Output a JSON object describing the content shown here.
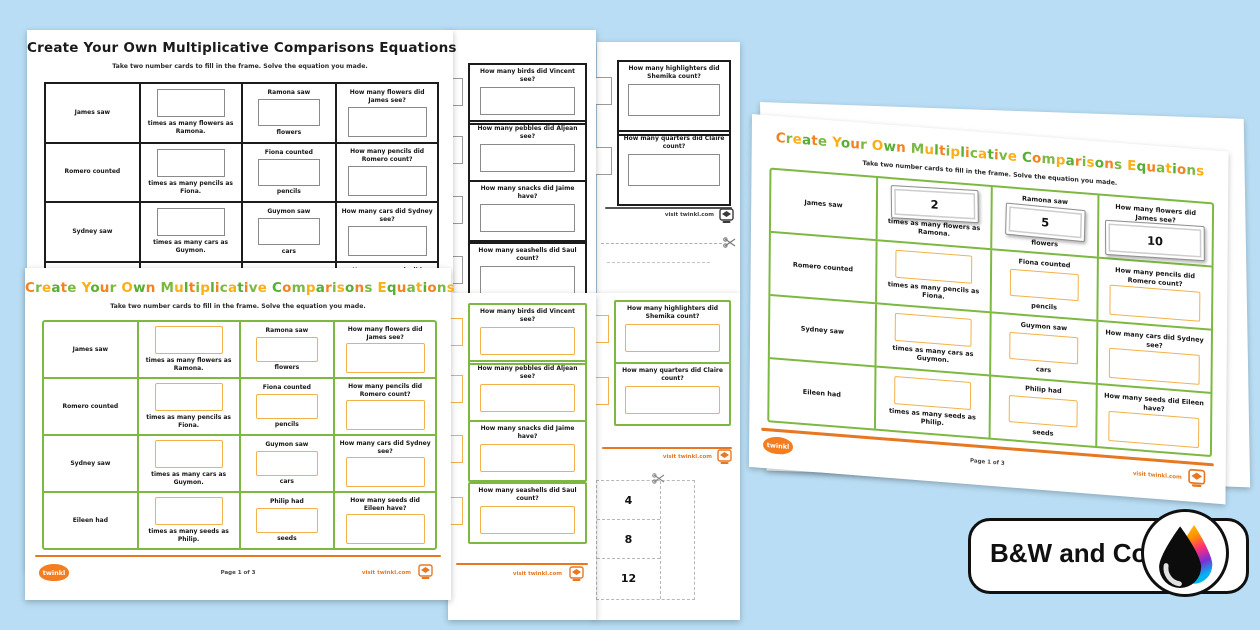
{
  "colors": {
    "background": "#b9ddf4",
    "table_green": "#7db843",
    "box_orange": "#f2b14b",
    "footer_orange": "#e87722",
    "brand_orange": "#f47d20",
    "title_palette": [
      "#f58220",
      "#7db843",
      "#fbaf17",
      "#57ae35"
    ]
  },
  "badge": {
    "label": "B&W and Color",
    "icon": "ink-drop-icon"
  },
  "worksheet": {
    "title": "Create Your Own Multiplicative Comparisons Equations",
    "subtitle": "Take two number cards to fill in the frame. Solve the equation you made.",
    "rows": [
      {
        "subject": "James saw",
        "mult_label": "times as many flowers as Ramona.",
        "partner": "Ramona saw",
        "partner_unit": "flowers",
        "question": "How many flowers did James see?",
        "cards": [
          "2",
          "5",
          "10"
        ]
      },
      {
        "subject": "Romero counted",
        "mult_label": "times as many pencils as Fiona.",
        "partner": "Fiona counted",
        "partner_unit": "pencils",
        "question": "How many pencils did Romero count?"
      },
      {
        "subject": "Sydney saw",
        "mult_label": "times as many cars as Guymon.",
        "partner": "Guymon saw",
        "partner_unit": "cars",
        "question": "How many cars did Sydney see?"
      },
      {
        "subject": "Eileen had",
        "mult_label": "times as many seeds as Philip.",
        "partner": "Philip had",
        "partner_unit": "seeds",
        "question": "How many seeds did Eileen have?"
      }
    ],
    "footer": {
      "page_label": "Page 1 of 3",
      "visit_label": "visit twinkl.com",
      "brand": "twinkl"
    }
  },
  "extra_questions": {
    "page2": [
      "How many birds did Vincent see?",
      "How many pebbles did Aljean see?",
      "How many snacks did Jaime have?",
      "How many seashells did Saul count?"
    ],
    "page3": [
      "How many highlighters did Shemika count?",
      "How many quarters did Claire count?"
    ]
  },
  "number_cards": [
    "4",
    "8",
    "12"
  ]
}
